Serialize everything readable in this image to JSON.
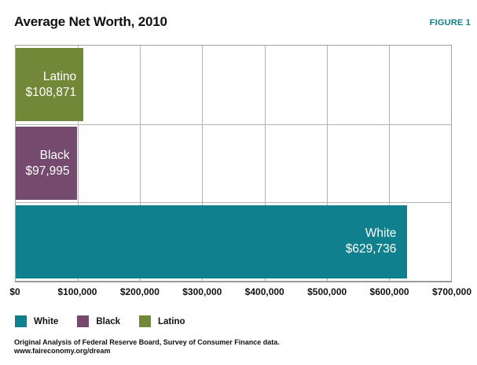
{
  "header": {
    "title": "Average Net Worth, 2010",
    "figure_label": "FIGURE 1"
  },
  "chart_data": {
    "type": "bar",
    "orientation": "horizontal",
    "title": "Average Net Worth, 2010",
    "xlabel": "",
    "ylabel": "",
    "xlim": [
      0,
      700000
    ],
    "grid": true,
    "x_tick_labels": [
      "$0",
      "$100,000",
      "$200,000",
      "$300,000",
      "$400,000",
      "$500,000",
      "$600,000",
      "$700,000"
    ],
    "bars": [
      {
        "name": "Latino",
        "value": 108871,
        "display_value": "$108,871",
        "color": "#708838"
      },
      {
        "name": "Black",
        "value": 97995,
        "display_value": "$97,995",
        "color": "#76496e"
      },
      {
        "name": "White",
        "value": 629736,
        "display_value": "$629,736",
        "color": "#10808e"
      }
    ],
    "legend_position": "bottom",
    "legend": [
      {
        "label": "White",
        "color": "#10808e"
      },
      {
        "label": "Black",
        "color": "#76496e"
      },
      {
        "label": "Latino",
        "color": "#708838"
      }
    ]
  },
  "footer": {
    "source_line": "Original Analysis of Federal Reserve Board, Survey of Consumer Finance data.",
    "url_line": "www.faireconomy.org/dream"
  },
  "colors": {
    "accent_teal": "#10808e",
    "purple": "#76496e",
    "olive": "#708838",
    "grid": "#b3b3b3",
    "border": "#a3a3a3"
  }
}
